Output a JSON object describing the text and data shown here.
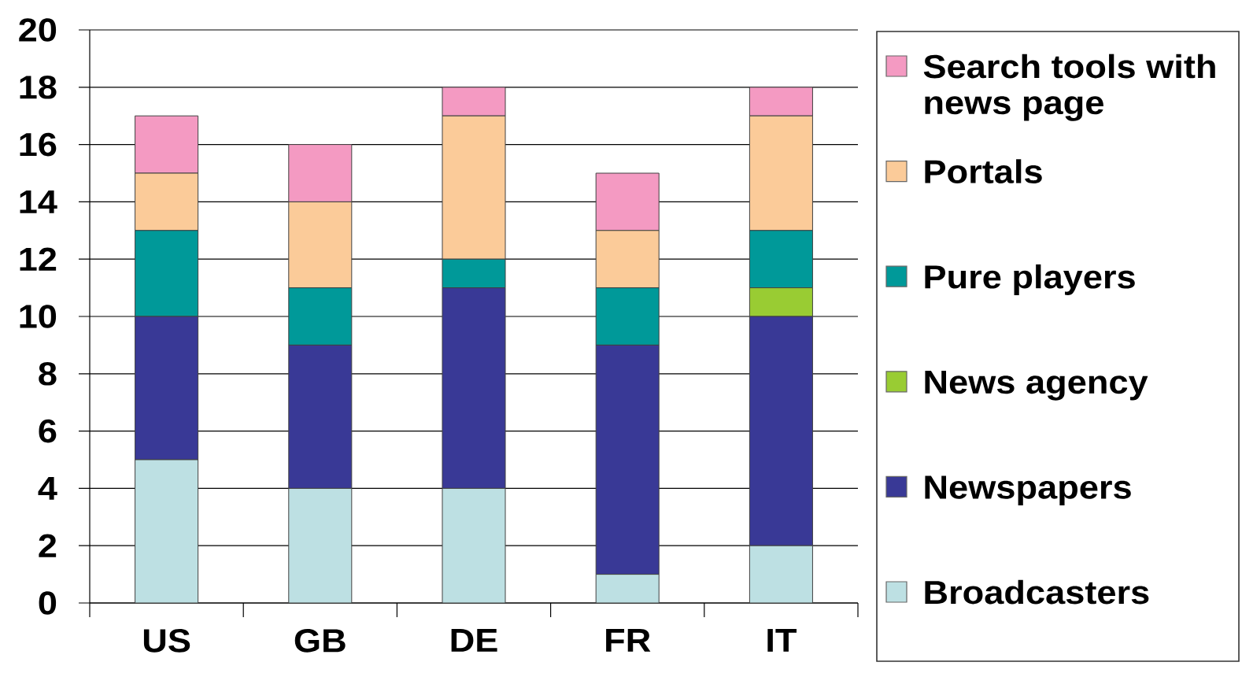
{
  "chart_data": {
    "type": "bar",
    "stacked": true,
    "categories": [
      "US",
      "GB",
      "DE",
      "FR",
      "IT"
    ],
    "series": [
      {
        "name": "Broadcasters",
        "color": "#bde0e3",
        "values": [
          5,
          4,
          4,
          1,
          2
        ]
      },
      {
        "name": "Newspapers",
        "color": "#393996",
        "values": [
          5,
          5,
          7,
          8,
          8
        ]
      },
      {
        "name": "News agency",
        "color": "#99cc33",
        "values": [
          0,
          0,
          0,
          0,
          1
        ]
      },
      {
        "name": "Pure players",
        "color": "#009999",
        "values": [
          3,
          2,
          1,
          2,
          2
        ]
      },
      {
        "name": "Portals",
        "color": "#fbcb99",
        "values": [
          2,
          3,
          5,
          2,
          4
        ]
      },
      {
        "name": "Search tools with news page",
        "color": "#f49ac2",
        "values": [
          2,
          2,
          1,
          2,
          1
        ]
      }
    ],
    "ylim": [
      0,
      20
    ],
    "yticks": [
      0,
      2,
      4,
      6,
      8,
      10,
      12,
      14,
      16,
      18,
      20
    ],
    "grid": "y",
    "legend": "right"
  }
}
